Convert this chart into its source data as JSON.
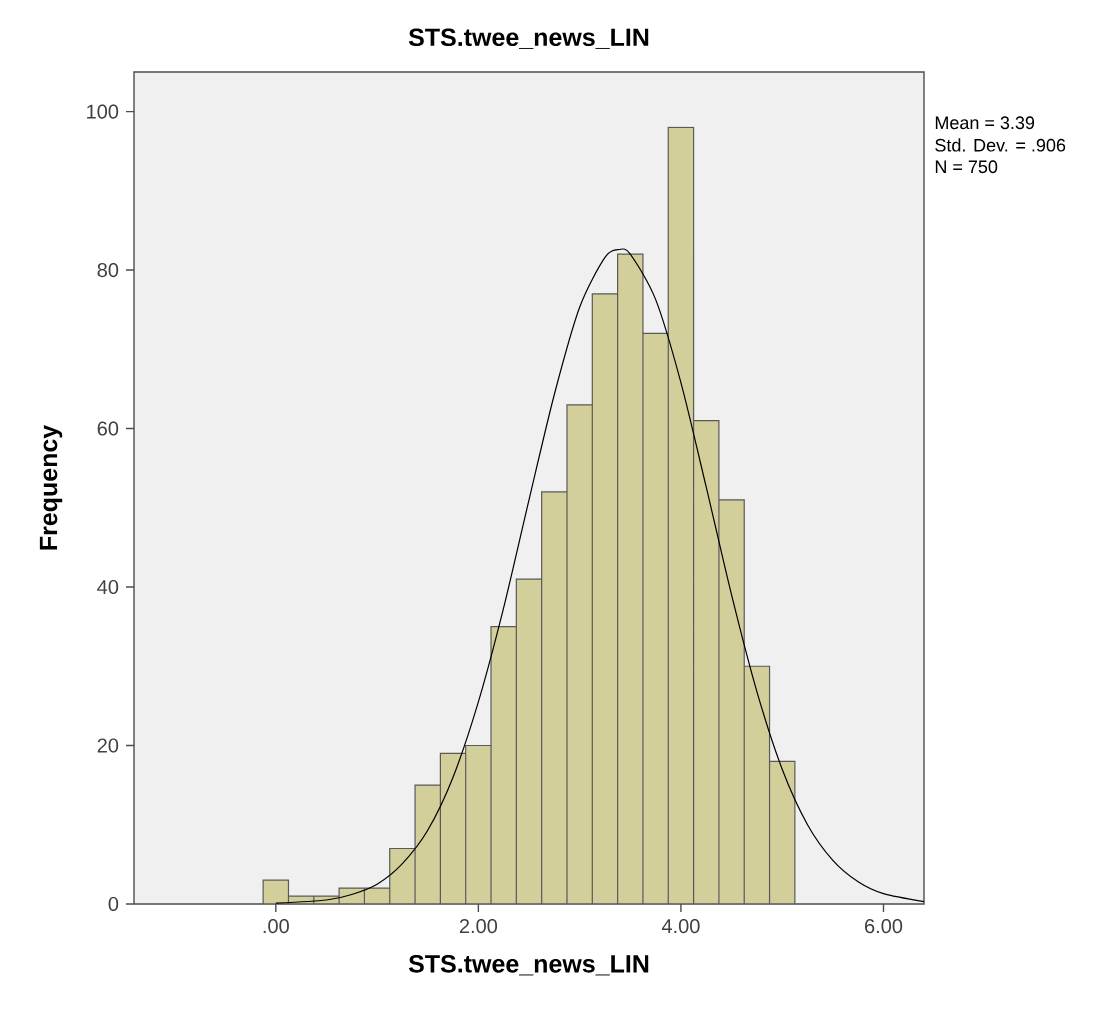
{
  "chart_data": {
    "type": "histogram",
    "title": "STS.twee_news_LIN",
    "xlabel": "STS.twee_news_LIN",
    "ylabel": "Frequency",
    "bins": [
      -0.125,
      0.125,
      0.375,
      0.625,
      0.875,
      1.125,
      1.375,
      1.625,
      1.875,
      2.125,
      2.375,
      2.625,
      2.875,
      3.125,
      3.375,
      3.625,
      3.875,
      4.125,
      4.375,
      4.625,
      4.875,
      5.125
    ],
    "series": [
      {
        "type": "histogram",
        "color": "#d3cf9a",
        "values": [
          3,
          1,
          1,
          2,
          2,
          7,
          15,
          19,
          20,
          35,
          41,
          52,
          63,
          77,
          82,
          72,
          98,
          61,
          51,
          30,
          18
        ]
      },
      {
        "type": "line",
        "color": "#000000",
        "x": [
          0,
          0.5,
          0.75,
          1.0,
          1.25,
          1.5,
          1.75,
          2.0,
          2.25,
          2.5,
          2.75,
          3.0,
          3.25,
          3.39,
          3.5,
          3.75,
          4.0,
          4.25,
          4.5,
          4.75,
          5.0,
          5.25,
          5.5,
          5.75,
          6.0,
          6.4
        ],
        "values": [
          0.1,
          0.5,
          1.2,
          2.5,
          5.1,
          9.3,
          16,
          25.5,
          37.4,
          51,
          64.3,
          75.3,
          81.6,
          82.6,
          82,
          76.3,
          65.8,
          52.6,
          39,
          26.8,
          17,
          10,
          5.5,
          2.8,
          1.3,
          0.3
        ]
      }
    ],
    "xlim": [
      -1.4,
      6.4
    ],
    "ylim": [
      0,
      105
    ],
    "xticks": [
      {
        "value": 0,
        "label": ".00"
      },
      {
        "value": 2,
        "label": "2.00"
      },
      {
        "value": 4,
        "label": "4.00"
      },
      {
        "value": 6,
        "label": "6.00"
      }
    ],
    "yticks": [
      0,
      20,
      40,
      60,
      80,
      100
    ],
    "grid": false,
    "annotations": [
      "Mean = 3.39",
      "Std. Dev. = .906",
      "N = 750"
    ]
  }
}
